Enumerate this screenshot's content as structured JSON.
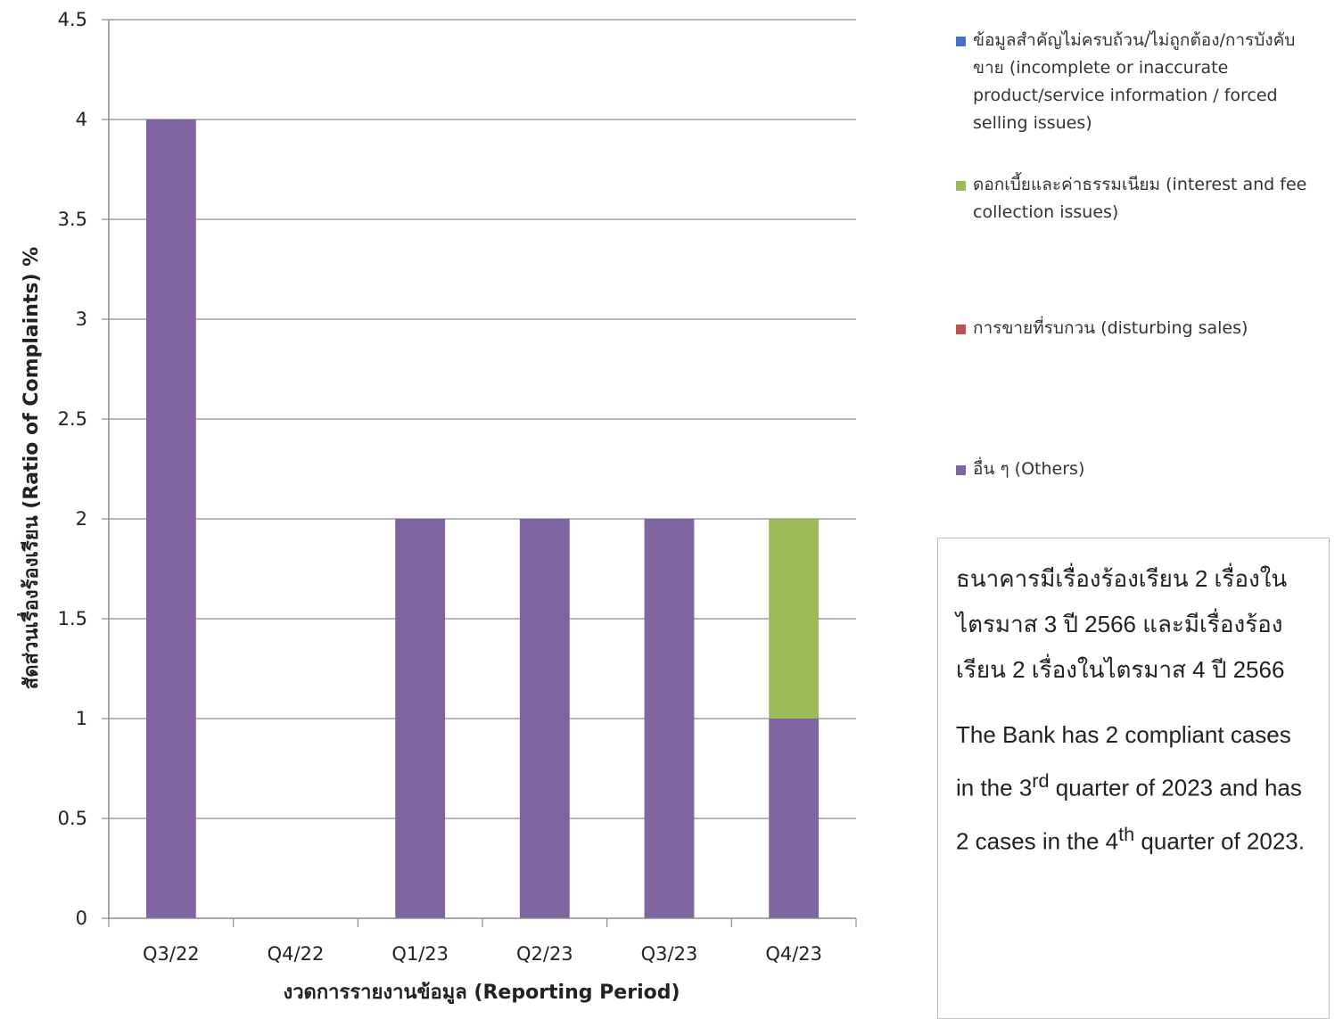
{
  "chart_data": {
    "type": "bar",
    "stacked": true,
    "categories": [
      "Q3/22",
      "Q4/22",
      "Q1/23",
      "Q2/23",
      "Q3/23",
      "Q4/23"
    ],
    "series": [
      {
        "name": "ข้อมูลสำคัญไม่ครบถ้วน/ไม่ถูกต้อง/การบังคับขาย (incomplete or inaccurate product/service information / forced selling issues)",
        "color": "#4472C4",
        "values": [
          0,
          0,
          0,
          0,
          0,
          0
        ]
      },
      {
        "name": "ดอกเบี้ยและค่าธรรมเนียม (interest and fee collection issues)",
        "color": "#9BBB59",
        "values": [
          0,
          0,
          0,
          0,
          0,
          1
        ]
      },
      {
        "name": "การขายที่รบกวน (disturbing sales)",
        "color": "#C0504D",
        "values": [
          0,
          0,
          0,
          0,
          0,
          0
        ]
      },
      {
        "name": "อื่น ๆ (Others)",
        "color": "#8064A2",
        "values": [
          4,
          0,
          2,
          2,
          2,
          1
        ]
      }
    ],
    "ylim": [
      0,
      4.5
    ],
    "yticks": [
      "0",
      "0.5",
      "1",
      "1.5",
      "2",
      "2.5",
      "3",
      "3.5",
      "4",
      "4.5"
    ],
    "xlabel": "งวดการรายงานข้อมูล (Reporting Period)",
    "ylabel": "สัดส่วนเรื่องร้องเรียน (Ratio of Complaints) %",
    "grid": true,
    "legend_position": "right"
  },
  "legend": {
    "items": [
      {
        "lines": [
          "ข้อมูลสำคัญไม่ครบถ้วน/ไม่ถูกต้อง/การบังคับ",
          "ขาย (incomplete or inaccurate",
          "product/service information / forced",
          "selling issues)"
        ],
        "color": "#4472C4"
      },
      {
        "lines": [
          "ดอกเบี้ยและค่าธรรมเนียม (interest and fee",
          "collection issues)"
        ],
        "color": "#9BBB59"
      },
      {
        "lines": [
          "การขายที่รบกวน (disturbing sales)"
        ],
        "color": "#C0504D"
      },
      {
        "lines": [
          "อื่น ๆ (Others)"
        ],
        "color": "#8064A2"
      }
    ]
  },
  "note": {
    "thai": "ธนาคารมีเรื่องร้องเรียน 2 เรื่องในไตรมาส 3 ปี 2566 และมีเรื่องร้องเรียน 2 เรื่องในไตรมาส 4 ปี 2566",
    "english_part1": "The Bank has 2 compliant cases in the 3",
    "english_sup1": "rd",
    "english_part2": " quarter of 2023 and has 2 cases in the 4",
    "english_sup2": "th",
    "english_part3": " quarter of 2023."
  }
}
